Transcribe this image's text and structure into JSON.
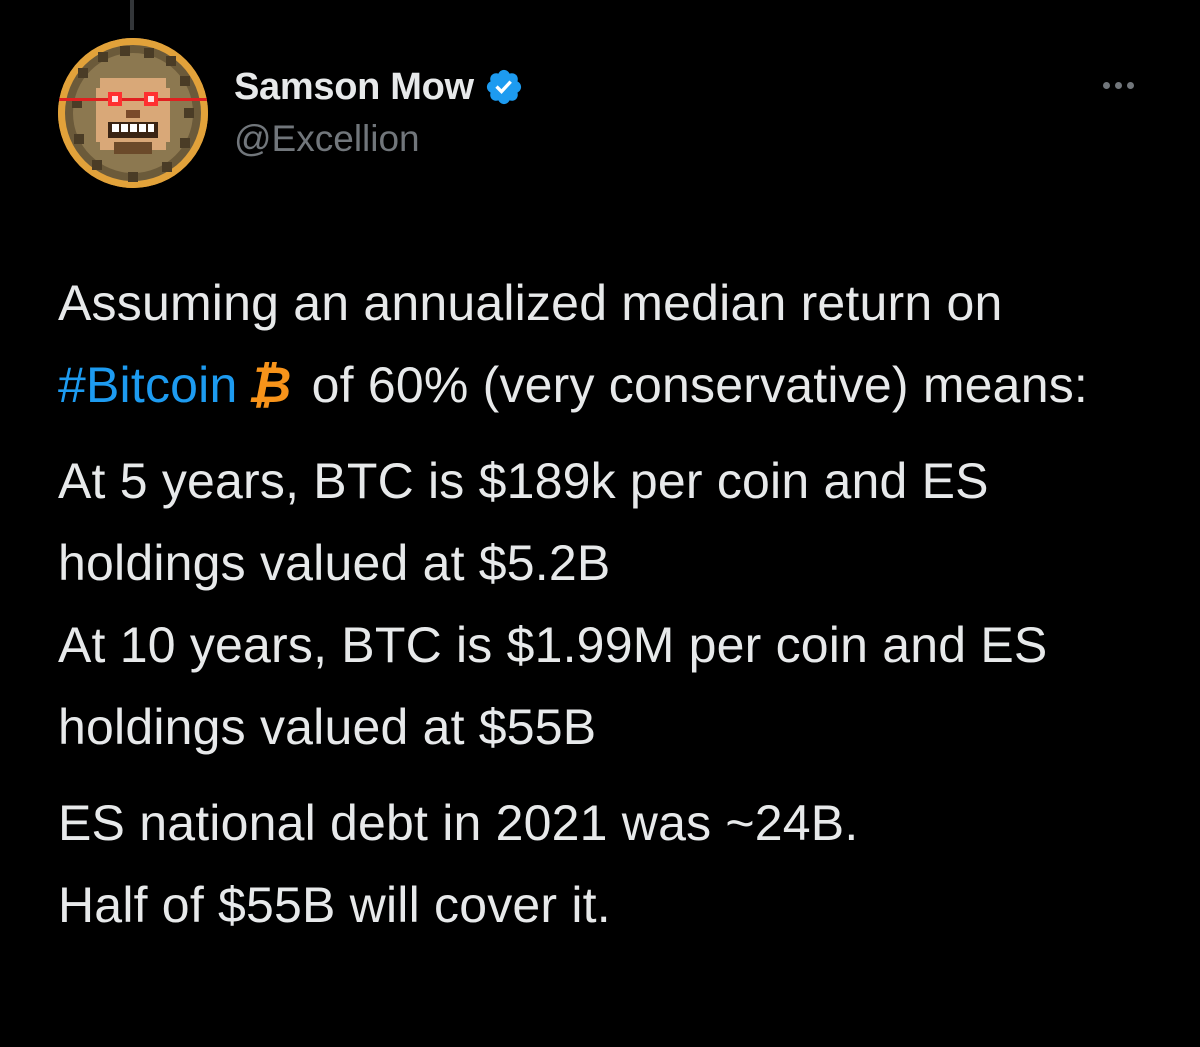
{
  "author": {
    "display_name": "Samson Mow",
    "handle": "@Excellion",
    "verified": true
  },
  "tweet": {
    "para1_part1": "Assuming an annualized median return on ",
    "hashtag": "#Bitcoin",
    "emoji": "₿",
    "para1_part2": " of 60% (very conservative) means:",
    "line2": "At 5 years, BTC is $189k per coin and ES holdings valued at $5.2B",
    "line3": "At 10 years, BTC is $1.99M per coin and ES holdings valued at $55B",
    "line4": "ES national debt in 2021 was ~24B.",
    "line5": "Half of $55B will cover it."
  },
  "icons": {
    "verified": "verified-badge-icon",
    "more": "more-options-icon",
    "bitcoin": "bitcoin-icon"
  },
  "colors": {
    "background": "#000000",
    "text": "#e7e9ea",
    "secondary_text": "#71767b",
    "link": "#1d9bf0",
    "verified": "#1d9bf0",
    "bitcoin": "#f7931a"
  }
}
